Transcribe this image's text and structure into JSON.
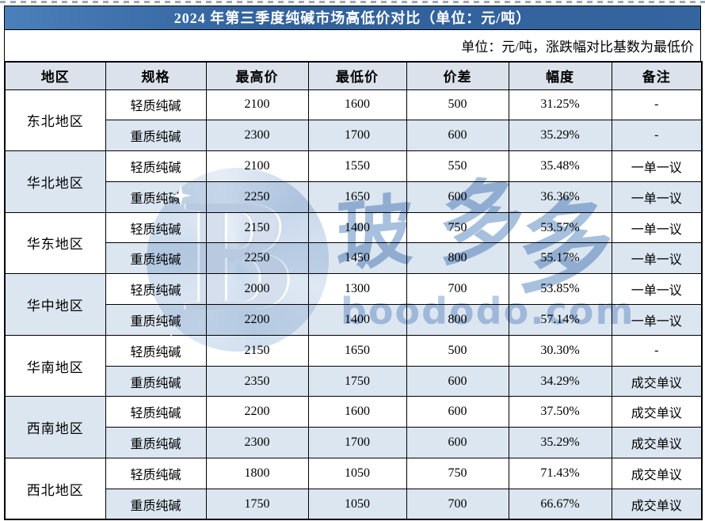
{
  "page": {
    "title": "2024 年第三季度纯碱市场高低价对比（单位：元/吨）",
    "subtitle": "单位：元/吨，涨跌幅对比基数为最低价"
  },
  "table": {
    "headers": [
      "地区",
      "规格",
      "最高价",
      "最低价",
      "价差",
      "幅度",
      "备注"
    ],
    "regions": [
      {
        "name": "东北地区",
        "rows": [
          {
            "spec": "轻质纯碱",
            "high": "2100",
            "low": "1600",
            "diff": "500",
            "range": "31.25%",
            "note": "-"
          },
          {
            "spec": "重质纯碱",
            "high": "2300",
            "low": "1700",
            "diff": "600",
            "range": "35.29%",
            "note": "-"
          }
        ]
      },
      {
        "name": "华北地区",
        "rows": [
          {
            "spec": "轻质纯碱",
            "high": "2100",
            "low": "1550",
            "diff": "550",
            "range": "35.48%",
            "note": "一单一议"
          },
          {
            "spec": "重质纯碱",
            "high": "2250",
            "low": "1650",
            "diff": "600",
            "range": "36.36%",
            "note": "一单一议"
          }
        ]
      },
      {
        "name": "华东地区",
        "rows": [
          {
            "spec": "轻质纯碱",
            "high": "2150",
            "low": "1400",
            "diff": "750",
            "range": "53.57%",
            "note": "一单一议"
          },
          {
            "spec": "重质纯碱",
            "high": "2250",
            "low": "1450",
            "diff": "800",
            "range": "55.17%",
            "note": "一单一议"
          }
        ]
      },
      {
        "name": "华中地区",
        "rows": [
          {
            "spec": "轻质纯碱",
            "high": "2000",
            "low": "1300",
            "diff": "700",
            "range": "53.85%",
            "note": "一单一议"
          },
          {
            "spec": "重质纯碱",
            "high": "2200",
            "low": "1400",
            "diff": "800",
            "range": "57.14%",
            "note": "一单一议"
          }
        ]
      },
      {
        "name": "华南地区",
        "rows": [
          {
            "spec": "轻质纯碱",
            "high": "2150",
            "low": "1650",
            "diff": "500",
            "range": "30.30%",
            "note": "-"
          },
          {
            "spec": "重质纯碱",
            "high": "2350",
            "low": "1750",
            "diff": "600",
            "range": "34.29%",
            "note": "成交单议"
          }
        ]
      },
      {
        "name": "西南地区",
        "rows": [
          {
            "spec": "轻质纯碱",
            "high": "2200",
            "low": "1600",
            "diff": "600",
            "range": "37.50%",
            "note": "成交单议"
          },
          {
            "spec": "重质纯碱",
            "high": "2300",
            "low": "1700",
            "diff": "600",
            "range": "35.29%",
            "note": "成交单议"
          }
        ]
      },
      {
        "name": "西北地区",
        "rows": [
          {
            "spec": "轻质纯碱",
            "high": "1800",
            "low": "1050",
            "diff": "750",
            "range": "71.43%",
            "note": "成交单议"
          },
          {
            "spec": "重质纯碱",
            "high": "1750",
            "low": "1050",
            "diff": "700",
            "range": "66.67%",
            "note": "成交单议"
          }
        ]
      }
    ]
  },
  "watermark": {
    "logo_letter": "B",
    "brand_char_1": "玻",
    "brand_char_2": "多",
    "brand_char_3": "多",
    "url": "boododo.com"
  },
  "colors": {
    "title_bar_blue": "#34659f",
    "header_bg": "#dbe2eb",
    "alt_row_bg": "#dce6f1",
    "border": "#000000",
    "watermark_blue": "#9dbcdd"
  }
}
